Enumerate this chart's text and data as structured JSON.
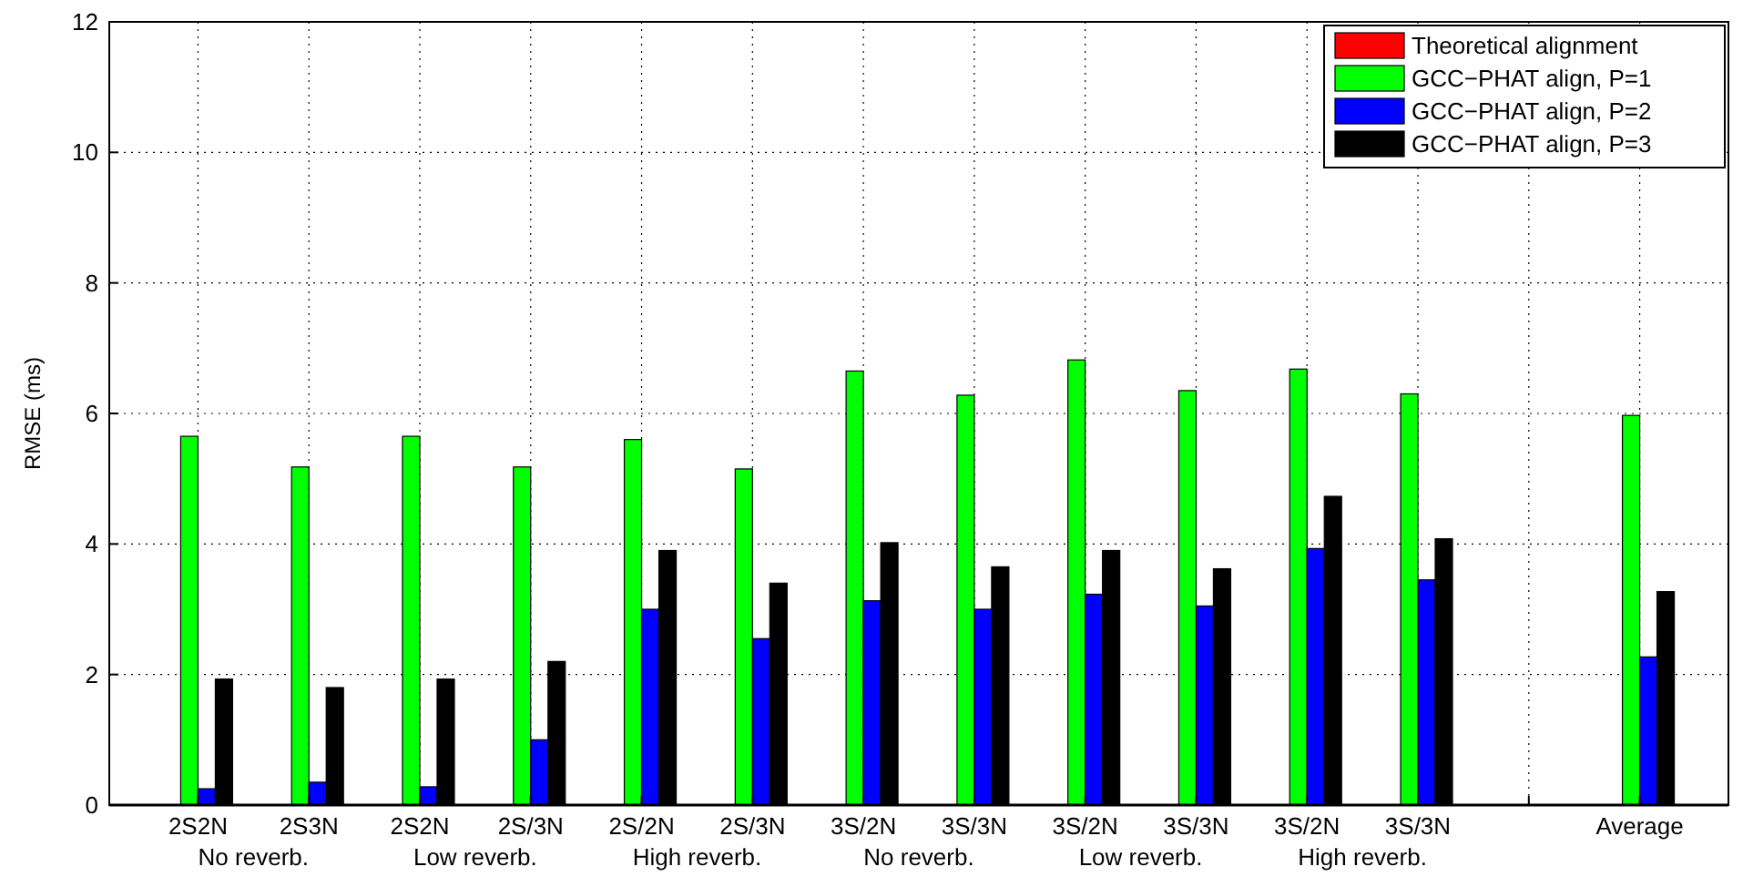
{
  "chart_data": {
    "type": "bar",
    "ylabel": "RMSE (ms)",
    "categories": [
      "2S2N",
      "2S3N",
      "2S2N",
      "2S/3N",
      "2S/2N",
      "2S/3N",
      "3S/2N",
      "3S/3N",
      "3S/2N",
      "3S/3N",
      "3S/2N",
      "3S/3N",
      null,
      "Average"
    ],
    "annotations": [
      "No reverb.",
      "Low reverb.",
      "High reverb.",
      "No reverb.",
      "Low reverb.",
      "High reverb."
    ],
    "series": [
      {
        "name": "Theoretical alignment",
        "color": "#ff0000",
        "values": [
          0,
          0,
          0,
          0,
          0,
          0,
          0,
          0,
          0,
          0,
          0,
          0,
          null,
          0
        ]
      },
      {
        "name": "GCC−PHAT align, P=1",
        "color": "#00ff00",
        "values": [
          5.65,
          5.18,
          5.65,
          5.18,
          5.6,
          5.15,
          6.65,
          6.28,
          6.82,
          6.35,
          6.68,
          6.3,
          null,
          5.97
        ]
      },
      {
        "name": "GCC−PHAT align, P=2",
        "color": "#0000ff",
        "values": [
          0.25,
          0.35,
          0.28,
          1.0,
          3.0,
          2.55,
          3.13,
          3.0,
          3.23,
          3.05,
          3.93,
          3.45,
          null,
          2.27
        ]
      },
      {
        "name": "GCC−PHAT align, P=3",
        "color": "#000000",
        "values": [
          1.93,
          1.8,
          1.93,
          2.2,
          3.9,
          3.4,
          4.02,
          3.65,
          3.9,
          3.62,
          4.73,
          4.08,
          null,
          3.27
        ]
      }
    ],
    "ylim": [
      0,
      12
    ],
    "yticks": [
      0,
      2,
      4,
      6,
      8,
      10,
      12
    ],
    "grid": true,
    "legend": "top right"
  }
}
